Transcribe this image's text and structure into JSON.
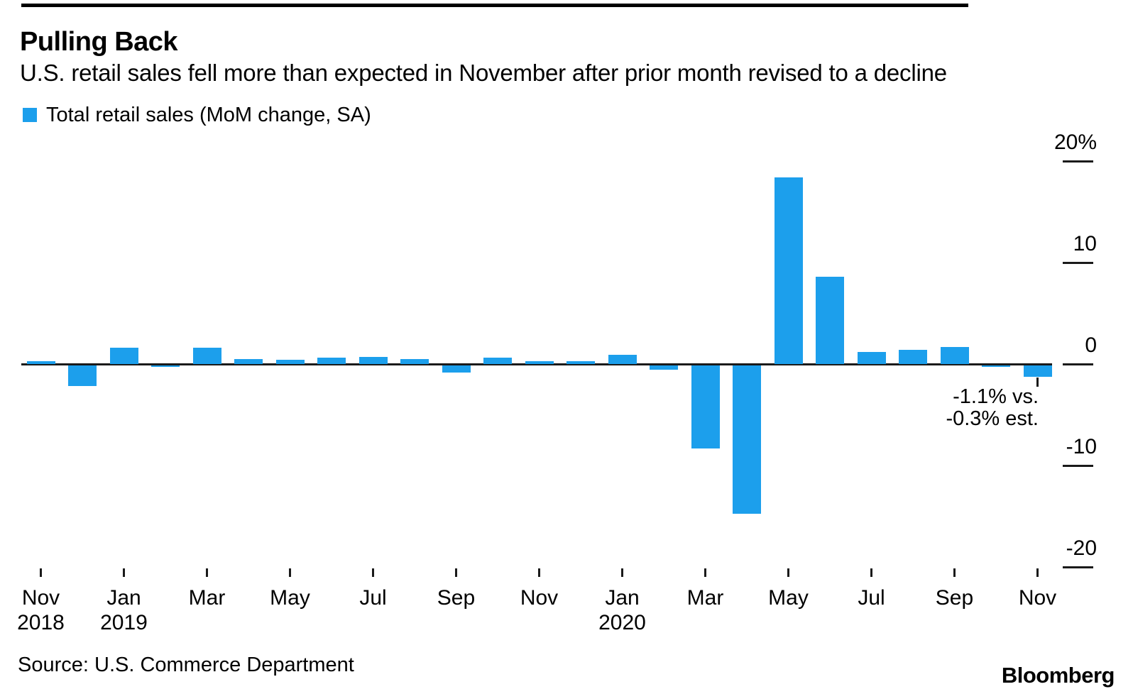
{
  "header": {
    "title": "Pulling Back",
    "subtitle": "U.S. retail sales fell more than expected in November after prior month revised to a decline"
  },
  "legend": {
    "label": "Total retail sales (MoM change, SA)"
  },
  "chart_data": {
    "type": "bar",
    "title": "Pulling Back",
    "series_name": "Total retail sales (MoM change, SA)",
    "x": [
      "Nov 2018",
      "Dec 2018",
      "Jan 2019",
      "Feb 2019",
      "Mar 2019",
      "Apr 2019",
      "May 2019",
      "Jun 2019",
      "Jul 2019",
      "Aug 2019",
      "Sep 2019",
      "Oct 2019",
      "Nov 2019",
      "Dec 2019",
      "Jan 2020",
      "Feb 2020",
      "Mar 2020",
      "Apr 2020",
      "May 2020",
      "Jun 2020",
      "Jul 2020",
      "Aug 2020",
      "Sep 2020",
      "Oct 2020",
      "Nov 2020"
    ],
    "values": [
      0.3,
      -2.0,
      1.6,
      -0.1,
      1.6,
      0.5,
      0.4,
      0.6,
      0.7,
      0.5,
      -0.7,
      0.6,
      0.3,
      0.3,
      0.9,
      -0.4,
      -8.2,
      -14.6,
      18.4,
      8.6,
      1.2,
      1.4,
      1.7,
      -0.1,
      -1.1
    ],
    "unit": "%",
    "bar_color": "#1C9FEC",
    "ylim": [
      -22,
      21
    ],
    "y_ticks": [
      20,
      10,
      0,
      -10,
      -20
    ],
    "y_tick_labels": [
      "20%",
      "10",
      "0",
      "-10",
      "-20"
    ],
    "x_tick_labels": [
      {
        "month": "Nov",
        "year": "2018"
      },
      {
        "month": "Jan",
        "year": "2019"
      },
      {
        "month": "Mar",
        "year": ""
      },
      {
        "month": "May",
        "year": ""
      },
      {
        "month": "Jul",
        "year": ""
      },
      {
        "month": "Sep",
        "year": ""
      },
      {
        "month": "Nov",
        "year": ""
      },
      {
        "month": "Jan",
        "year": "2020"
      },
      {
        "month": "Mar",
        "year": ""
      },
      {
        "month": "May",
        "year": ""
      },
      {
        "month": "Jul",
        "year": ""
      },
      {
        "month": "Sep",
        "year": ""
      },
      {
        "month": "Nov",
        "year": ""
      }
    ],
    "grid": false,
    "axis_side": "right",
    "legend_position": "top-left",
    "annotation": {
      "line1": "-1.1% vs.",
      "line2": "-0.3% est.",
      "target_x": "Nov 2020"
    }
  },
  "footer": {
    "source": "Source: U.S. Commerce Department",
    "brand": "Bloomberg"
  }
}
